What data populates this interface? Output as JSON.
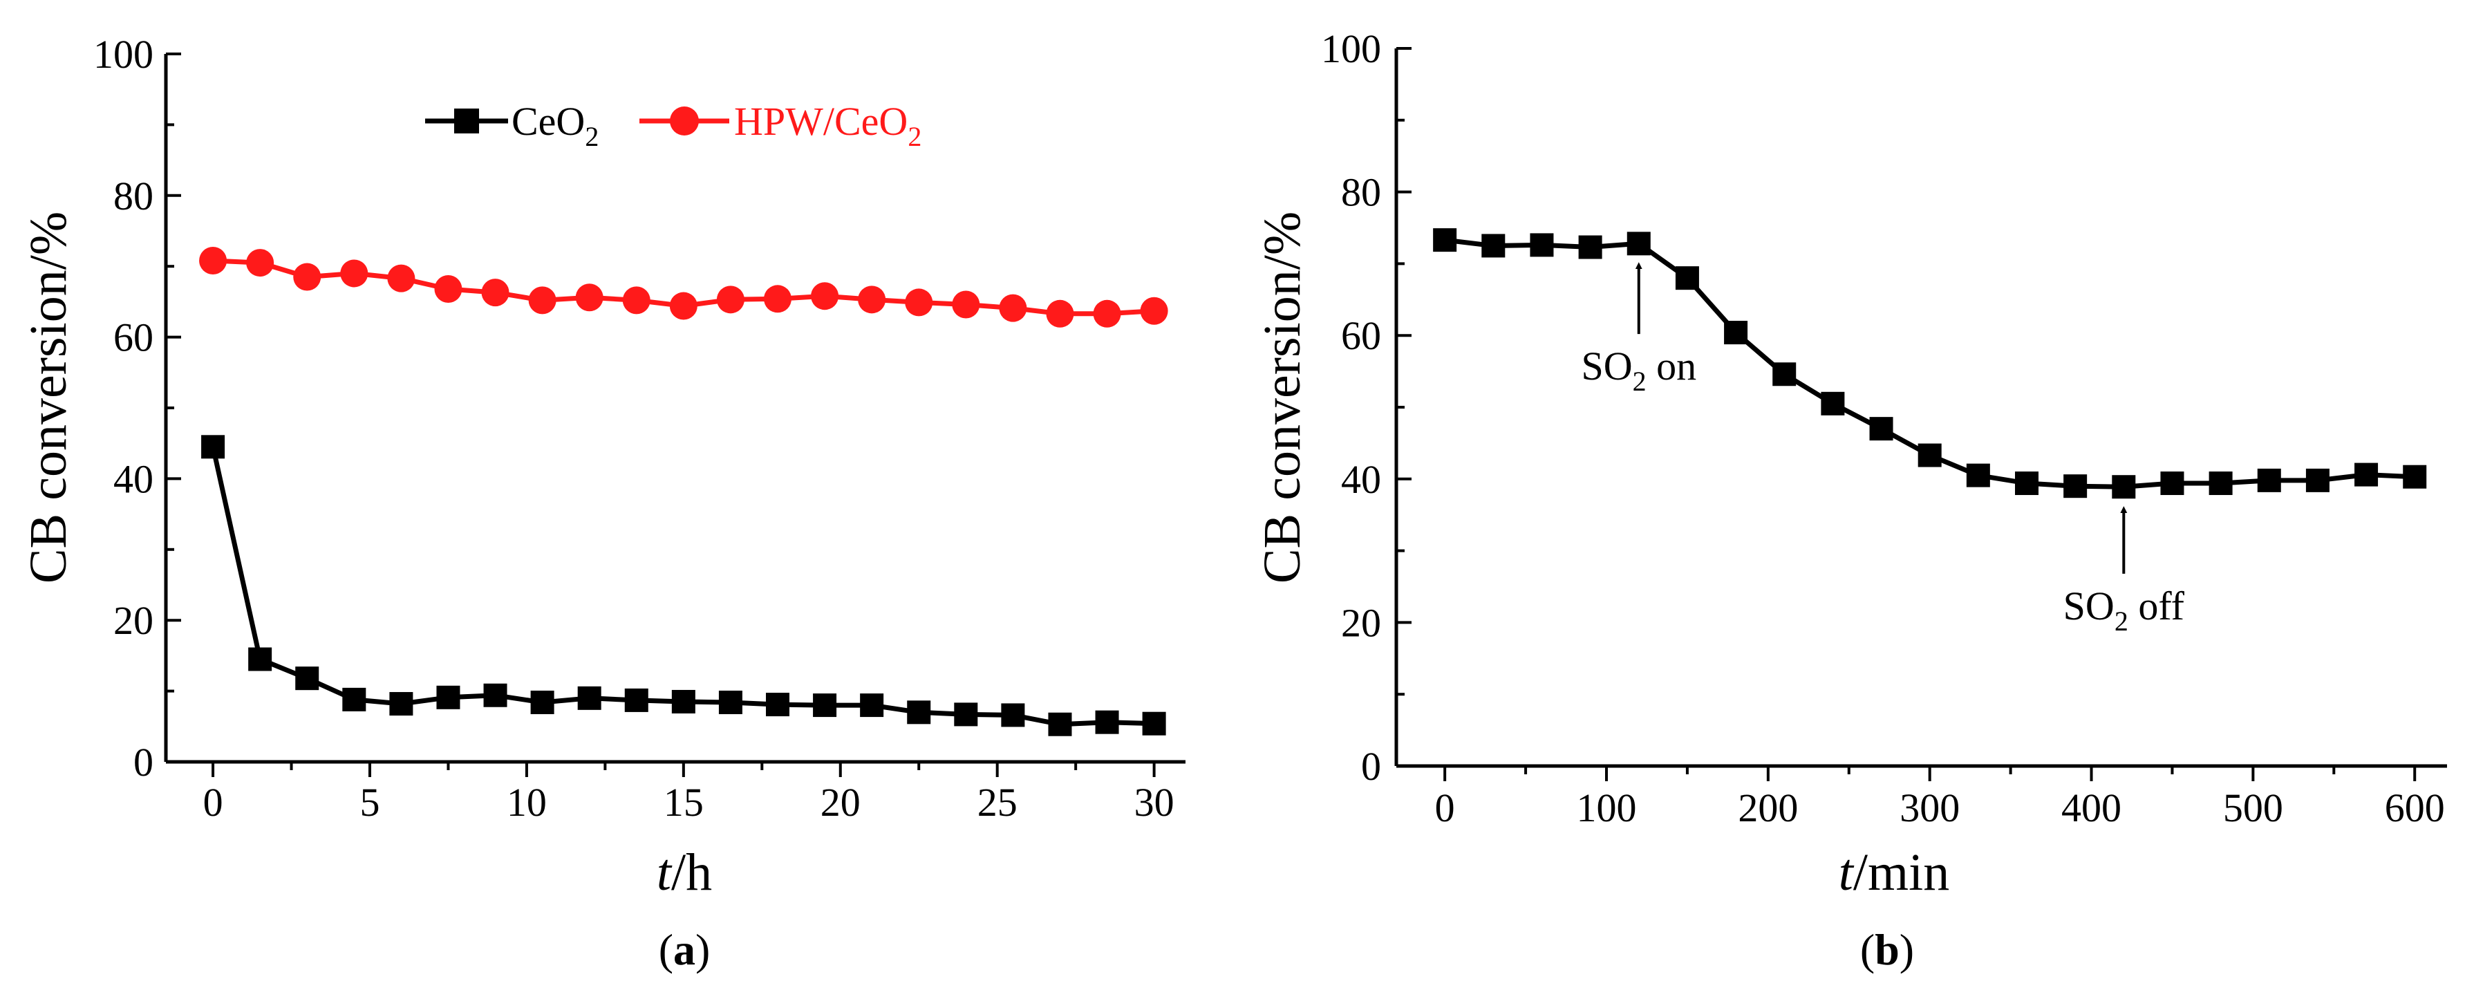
{
  "chart_data": [
    {
      "type": "line",
      "panel_label": "a",
      "xlabel_italic": "t",
      "xlabel_unit": "/h",
      "ylabel": "CB conversion/%",
      "xlim": [
        -1.5,
        31
      ],
      "ylim": [
        0,
        100
      ],
      "xticks": [
        0,
        5,
        10,
        15,
        20,
        25,
        30
      ],
      "yticks": [
        0,
        20,
        40,
        60,
        80,
        100
      ],
      "legend_position": "top-center",
      "series": [
        {
          "name": "CeO2",
          "legend_main": "CeO",
          "legend_sub": "2",
          "legend_tail": "",
          "color": "#000000",
          "marker": "square",
          "x": [
            0,
            1.5,
            3,
            4.5,
            6,
            7.5,
            9,
            10.5,
            12,
            13.5,
            15,
            16.5,
            18,
            19.5,
            21,
            22.5,
            24,
            25.5,
            27,
            28.5,
            30
          ],
          "values": [
            44.5,
            14.5,
            11.8,
            8.8,
            8.2,
            9.1,
            9.4,
            8.4,
            9.0,
            8.7,
            8.5,
            8.4,
            8.1,
            8.0,
            8.0,
            7.0,
            6.7,
            6.6,
            5.3,
            5.6,
            5.4
          ]
        },
        {
          "name": "HPW/CeO2",
          "legend_main": "HPW/CeO",
          "legend_sub": "2",
          "legend_tail": "",
          "color": "#ff1a1a",
          "marker": "circle",
          "x": [
            0,
            1.5,
            3,
            4.5,
            6,
            7.5,
            9,
            10.5,
            12,
            13.5,
            15,
            16.5,
            18,
            19.5,
            21,
            22.5,
            24,
            25.5,
            27,
            28.5,
            30
          ],
          "values": [
            70.8,
            70.5,
            68.5,
            69.0,
            68.3,
            66.8,
            66.3,
            65.2,
            65.6,
            65.2,
            64.4,
            65.3,
            65.4,
            65.8,
            65.3,
            64.9,
            64.6,
            64.1,
            63.3,
            63.3,
            63.7
          ]
        }
      ]
    },
    {
      "type": "line",
      "panel_label": "b",
      "xlabel_italic": "t",
      "xlabel_unit": "/min",
      "ylabel": "CB conversion/%",
      "xlim": [
        -30,
        620
      ],
      "ylim": [
        0,
        100
      ],
      "xticks": [
        0,
        100,
        200,
        300,
        400,
        500,
        600
      ],
      "yticks": [
        0,
        20,
        40,
        60,
        80,
        100
      ],
      "series": [
        {
          "name": "CeO2",
          "color": "#000000",
          "marker": "square",
          "x": [
            0,
            30,
            60,
            90,
            120,
            150,
            180,
            210,
            240,
            270,
            300,
            330,
            360,
            390,
            420,
            450,
            480,
            510,
            540,
            570,
            600
          ],
          "values": [
            73.3,
            72.5,
            72.6,
            72.3,
            72.8,
            68.0,
            60.4,
            54.6,
            50.5,
            47.0,
            43.3,
            40.5,
            39.4,
            39.0,
            38.9,
            39.4,
            39.4,
            39.8,
            39.8,
            40.6,
            40.3
          ]
        }
      ],
      "annotations": [
        {
          "id": "so2-on",
          "main": "SO",
          "sub": "2",
          "tail": " on",
          "arrow_x": 120,
          "arrow_tip_y": 70.5,
          "arrow_tail_y": 60.2
        },
        {
          "id": "so2-off",
          "main": "SO",
          "sub": "2",
          "tail": " off",
          "arrow_x": 420,
          "arrow_tip_y": 36.5,
          "arrow_tail_y": 26.8
        }
      ]
    }
  ]
}
